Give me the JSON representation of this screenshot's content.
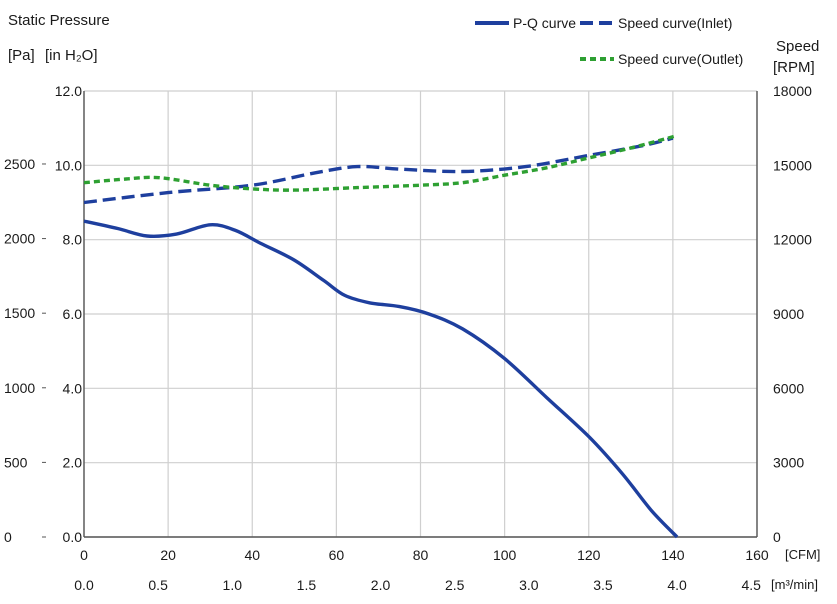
{
  "chart_data": {
    "type": "line",
    "left_axis": {
      "title": "Static Pressure",
      "unit_pa": "[Pa]",
      "unit_inh2o": "[in H₂O]",
      "pa_ticks": [
        0,
        500,
        1000,
        1500,
        2000,
        2500
      ],
      "pa_tick_labels": [
        "0",
        "500",
        "1000",
        "1500",
        "2000",
        "2500"
      ],
      "inh2o_ticks": [
        0,
        2,
        4,
        6,
        8,
        10,
        12
      ],
      "inh2o_tick_labels": [
        "0.0",
        "2.0",
        "4.0",
        "6.0",
        "8.0",
        "10.0",
        "12.0"
      ],
      "ylim_inh2o": [
        0,
        12
      ]
    },
    "right_axis": {
      "title": "Speed",
      "unit": "[RPM]",
      "ticks": [
        0,
        3000,
        6000,
        9000,
        12000,
        15000,
        18000
      ],
      "tick_labels": [
        "0",
        "3000",
        "6000",
        "9000",
        "12000",
        "15000",
        "18000"
      ],
      "ylim": [
        0,
        18000
      ]
    },
    "x_axis_cfm": {
      "unit": "[CFM]",
      "ticks": [
        0,
        20,
        40,
        60,
        80,
        100,
        120,
        140,
        160
      ],
      "tick_labels": [
        "0",
        "20",
        "40",
        "60",
        "80",
        "100",
        "120",
        "140",
        "160"
      ],
      "xlim": [
        0,
        160
      ]
    },
    "x_axis_m3min": {
      "unit": "[m³/min]",
      "ticks": [
        0,
        0.5,
        1,
        1.5,
        2,
        2.5,
        3,
        3.5,
        4,
        4.5
      ],
      "tick_labels": [
        "0.0",
        "0.5",
        "1.0",
        "1.5",
        "2.0",
        "2.5",
        "3.0",
        "3.5",
        "4.0",
        "4.5"
      ]
    },
    "grid": true,
    "legend_position": "top-right",
    "series": [
      {
        "name": "P-Q curve",
        "axis": "left_inh2o",
        "color": "#1e3f9e",
        "dash": "solid",
        "points": [
          [
            0,
            8.5
          ],
          [
            8,
            8.3
          ],
          [
            15,
            8.1
          ],
          [
            22,
            8.15
          ],
          [
            30,
            8.4
          ],
          [
            36,
            8.25
          ],
          [
            42,
            7.9
          ],
          [
            50,
            7.45
          ],
          [
            57,
            6.9
          ],
          [
            62,
            6.5
          ],
          [
            68,
            6.3
          ],
          [
            75,
            6.2
          ],
          [
            82,
            6.0
          ],
          [
            90,
            5.6
          ],
          [
            100,
            4.8
          ],
          [
            110,
            3.75
          ],
          [
            120,
            2.7
          ],
          [
            128,
            1.7
          ],
          [
            135,
            0.7
          ],
          [
            141,
            0.0
          ]
        ]
      },
      {
        "name": "Speed curve(Inlet)",
        "axis": "right_rpm",
        "color": "#1e3f9e",
        "dash": "dashed",
        "points": [
          [
            0,
            13500
          ],
          [
            20,
            13900
          ],
          [
            40,
            14200
          ],
          [
            55,
            14700
          ],
          [
            65,
            14950
          ],
          [
            75,
            14850
          ],
          [
            90,
            14750
          ],
          [
            105,
            14950
          ],
          [
            120,
            15400
          ],
          [
            133,
            15800
          ],
          [
            140,
            16100
          ]
        ]
      },
      {
        "name": "Speed curve(Outlet)",
        "axis": "right_rpm",
        "color": "#2ea032",
        "dash": "dotted",
        "points": [
          [
            0,
            14300
          ],
          [
            10,
            14450
          ],
          [
            18,
            14500
          ],
          [
            30,
            14200
          ],
          [
            40,
            14050
          ],
          [
            50,
            14000
          ],
          [
            65,
            14100
          ],
          [
            80,
            14200
          ],
          [
            90,
            14300
          ],
          [
            100,
            14600
          ],
          [
            110,
            14900
          ],
          [
            120,
            15300
          ],
          [
            130,
            15700
          ],
          [
            141,
            16200
          ]
        ]
      }
    ]
  }
}
